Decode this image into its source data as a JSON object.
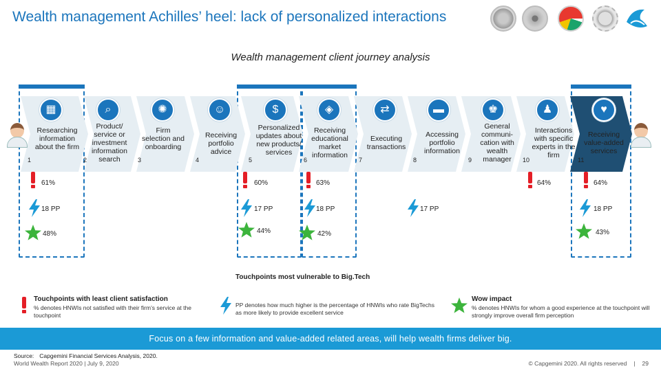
{
  "header": {
    "title": "Wealth management Achilles’ heel: lack of personalized interactions",
    "subtitle": "Wealth management client journey analysis"
  },
  "logos": [
    "seal-logo-1",
    "seal-logo-2",
    "colorful-logo",
    "seal-logo-4",
    "capgemini-logo"
  ],
  "steps": [
    {
      "num": "1",
      "label": "Researching information about the firm",
      "icon": "building-search-icon"
    },
    {
      "num": "2",
      "label": "Product/ service or investment information search",
      "icon": "magnifier-icon"
    },
    {
      "num": "3",
      "label": "Firm selection and onboarding",
      "icon": "network-icon"
    },
    {
      "num": "4",
      "label": "Receiving portfolio advice",
      "icon": "people-meeting-icon"
    },
    {
      "num": "5",
      "label": "Personalized updates about new products/ services",
      "icon": "money-icon"
    },
    {
      "num": "6",
      "label": "Receiving educational market information",
      "icon": "shield-icon"
    },
    {
      "num": "7",
      "label": "Executing transactions",
      "icon": "hand-transfer-icon"
    },
    {
      "num": "8",
      "label": "Accessing portfolio information",
      "icon": "folder-icon"
    },
    {
      "num": "9",
      "label": "General communi-cation with wealth manager",
      "icon": "manager-icon"
    },
    {
      "num": "10",
      "label": "Interactions with specific experts in the firm",
      "icon": "expert-icon"
    },
    {
      "num": "11",
      "label": "Receiving value-added services",
      "icon": "hand-gift-icon"
    }
  ],
  "metrics": {
    "least_satisfaction": [
      {
        "step": "1",
        "value": "61%"
      },
      {
        "step": "5",
        "value": "60%"
      },
      {
        "step": "6",
        "value": "63%"
      },
      {
        "step": "10",
        "value": "64%"
      },
      {
        "step": "11",
        "value": "64%"
      }
    ],
    "bigtech": [
      {
        "step": "1",
        "value": "18 PP"
      },
      {
        "step": "5",
        "value": "17 PP"
      },
      {
        "step": "6",
        "value": "18 PP"
      },
      {
        "step": "8",
        "value": "17 PP"
      },
      {
        "step": "11",
        "value": "18 PP"
      }
    ],
    "wow": [
      {
        "step": "1",
        "value": "48%"
      },
      {
        "step": "5",
        "value": "44%"
      },
      {
        "step": "6",
        "value": "42%"
      },
      {
        "step": "11",
        "value": "43%"
      }
    ]
  },
  "legend": {
    "least": {
      "title": "Touchpoints with least client satisfaction",
      "text": "% denotes HNWIs not satisfied with their firm’s service at the touchpoint"
    },
    "bigtech": {
      "title": "Touchpoints most vulnerable to Big.Tech",
      "text": "PP denotes how much higher is the percentage of HNWIs who rate BigTechs as more likely to provide excellent service"
    },
    "wow": {
      "title": "Wow impact",
      "text": "% denotes HNWIs for whom a good experience at the touchpoint will strongly improve overall firm perception"
    }
  },
  "banner": "Focus on a few information and value-added related areas, will help wealth firms deliver big.",
  "source": {
    "label": "Source:",
    "text": "Capgemini Financial Services Analysis, 2020."
  },
  "footer": {
    "left": "World Wealth Report 2020 | July 9, 2020",
    "copyright": "© Capgemini 2020. All rights reserved",
    "separator": "|",
    "page": "29"
  },
  "colors": {
    "accent": "#1b75bc",
    "banner": "#1b9ad6",
    "band": "#e6eef3",
    "alert": "#e41e26",
    "bolt": "#1b9ad6",
    "star": "#3cb43c"
  }
}
